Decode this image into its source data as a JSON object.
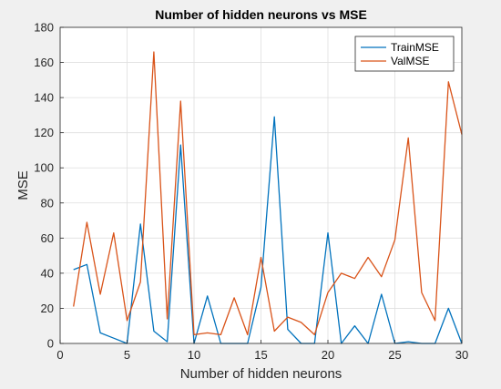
{
  "chart_data": {
    "type": "line",
    "title": "Number of hidden neurons vs MSE",
    "xlabel": "Number of hidden neurons",
    "ylabel": "MSE",
    "xlim": [
      0,
      30
    ],
    "ylim": [
      0,
      180
    ],
    "xticks": [
      0,
      5,
      10,
      15,
      20,
      25,
      30
    ],
    "yticks": [
      0,
      20,
      40,
      60,
      80,
      100,
      120,
      140,
      160,
      180
    ],
    "grid": true,
    "legend_position": "top-right",
    "x": [
      1,
      2,
      3,
      4,
      5,
      6,
      7,
      8,
      9,
      10,
      11,
      12,
      13,
      14,
      15,
      16,
      17,
      18,
      19,
      20,
      21,
      22,
      23,
      24,
      25,
      26,
      27,
      28,
      29,
      30
    ],
    "series": [
      {
        "name": "TrainMSE",
        "color": "#0072BD",
        "values": [
          42,
          45,
          6,
          3,
          0,
          68,
          7,
          1,
          113,
          0,
          27,
          0,
          0,
          0,
          32,
          129,
          8,
          0,
          0,
          63,
          0,
          10,
          0,
          28,
          0,
          1,
          0,
          0,
          20,
          0
        ]
      },
      {
        "name": "ValMSE",
        "color": "#D95319",
        "values": [
          21,
          69,
          28,
          63,
          13,
          35,
          166,
          14,
          138,
          5,
          6,
          5,
          26,
          5,
          49,
          7,
          15,
          12,
          5,
          29,
          40,
          37,
          49,
          38,
          59,
          117,
          29,
          13,
          149,
          119
        ]
      }
    ]
  }
}
